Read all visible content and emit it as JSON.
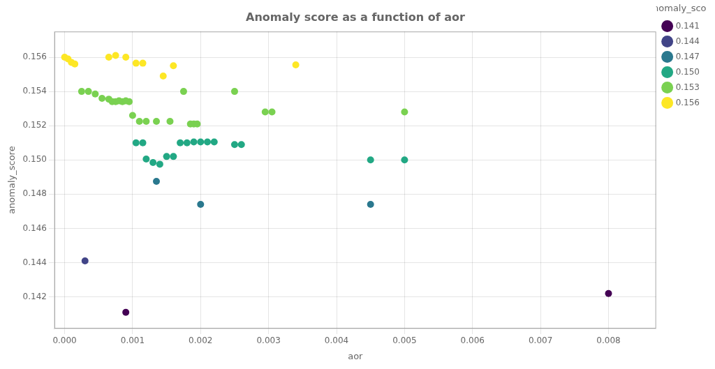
{
  "chart_data": {
    "type": "scatter",
    "title": "Anomaly score as a function of aor",
    "xlabel": "aor",
    "ylabel": "anomaly_score",
    "legend_title": "anomaly_score",
    "legend": "upper right",
    "grid": true,
    "xlim": [
      -0.00015,
      0.0087
    ],
    "ylim": [
      0.14015,
      0.1575
    ],
    "xticks": [
      {
        "value": 0,
        "label": "0.000"
      },
      0.001,
      0.002,
      0.003,
      0.004,
      0.005,
      0.006,
      0.007,
      0.008
    ],
    "yticks": [
      0.142,
      0.144,
      0.146,
      0.148,
      {
        "value": 0.15,
        "label": "0.150"
      },
      0.152,
      0.154,
      0.156
    ],
    "series": [
      {
        "name": "0.141",
        "color": "#440154",
        "x": [
          0.008,
          0.0009
        ],
        "values": [
          0.1422,
          0.1411
        ]
      },
      {
        "name": "0.144",
        "color": "#414487",
        "x": [
          0.0003
        ],
        "values": [
          0.1441
        ]
      },
      {
        "name": "0.147",
        "color": "#2a788e",
        "x": [
          0.00135,
          0.002,
          0.0045
        ],
        "values": [
          0.14875,
          0.1474,
          0.1474
        ]
      },
      {
        "name": "0.150",
        "color": "#22a884",
        "x": [
          0.00105,
          0.00115,
          0.0012,
          0.0013,
          0.0014,
          0.0015,
          0.0016,
          0.0017,
          0.0018,
          0.0019,
          0.002,
          0.0021,
          0.0022,
          0.0025,
          0.0026,
          0.0045,
          0.005
        ],
        "values": [
          0.151,
          0.151,
          0.15005,
          0.14985,
          0.14975,
          0.1502,
          0.1502,
          0.151,
          0.151,
          0.15105,
          0.15105,
          0.15105,
          0.15105,
          0.1509,
          0.1509,
          0.15,
          0.15
        ]
      },
      {
        "name": "0.153",
        "color": "#7ad151",
        "x": [
          0.00025,
          0.00035,
          0.00045,
          0.00055,
          0.00065,
          0.0007,
          0.00075,
          0.0008,
          0.00085,
          0.0009,
          0.00095,
          0.001,
          0.0011,
          0.0012,
          0.00135,
          0.00155,
          0.00175,
          0.00185,
          0.0019,
          0.00195,
          0.0025,
          0.00295,
          0.00305,
          0.005
        ],
        "values": [
          0.154,
          0.154,
          0.15385,
          0.1536,
          0.15355,
          0.1534,
          0.1534,
          0.15345,
          0.1534,
          0.15345,
          0.1534,
          0.1526,
          0.15225,
          0.15225,
          0.15225,
          0.15225,
          0.154,
          0.1521,
          0.1521,
          0.1521,
          0.154,
          0.1528,
          0.1528,
          0.1528
        ]
      },
      {
        "name": "0.156",
        "color": "#fde725",
        "x": [
          0,
          5e-05,
          0.0001,
          0.00015,
          0.00065,
          0.00075,
          0.0009,
          0.00105,
          0.00115,
          0.00145,
          0.0016,
          0.0034
        ],
        "values": [
          0.156,
          0.1559,
          0.1557,
          0.1556,
          0.156,
          0.1561,
          0.156,
          0.15565,
          0.15565,
          0.1549,
          0.1555,
          0.15555
        ]
      }
    ]
  }
}
